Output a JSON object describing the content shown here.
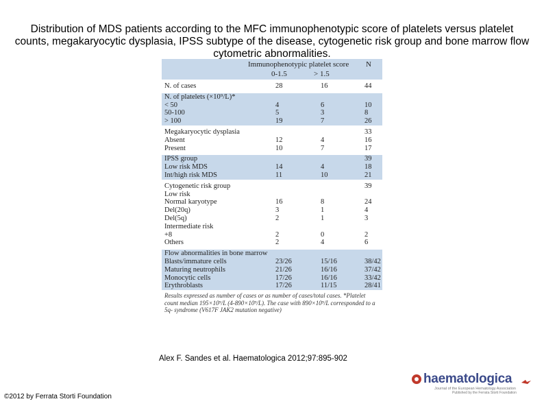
{
  "title": "Distribution of MDS patients according to the MFC immunophenotypic score of platelets versus platelet counts, megakaryocytic dysplasia, IPSS subtype of the disease, cytogenetic risk group and bone marrow flow cytometric abnormalities.",
  "table": {
    "header_group": "Immunophenotypic platelet score",
    "header_col1": "0-1.5",
    "header_col2": "> 1.5",
    "header_n": "N",
    "rows": [
      {
        "label": "N. of cases",
        "c1": "28",
        "c2": "16",
        "c3": "44",
        "band": false
      },
      {
        "label": "N. of platelets  (×10⁹/L)*",
        "c1": "",
        "c2": "",
        "c3": "",
        "band": true
      },
      {
        "label": "   < 50",
        "c1": "4",
        "c2": "6",
        "c3": "10",
        "band": true
      },
      {
        "label": "   50-100",
        "c1": "5",
        "c2": "3",
        "c3": "8",
        "band": true
      },
      {
        "label": "   > 100",
        "c1": "19",
        "c2": "7",
        "c3": "26",
        "band": true
      },
      {
        "label": "Megakaryocytic dysplasia",
        "c1": "",
        "c2": "",
        "c3": "33",
        "band": false
      },
      {
        "label": "   Absent",
        "c1": "12",
        "c2": "4",
        "c3": "16",
        "band": false
      },
      {
        "label": "   Present",
        "c1": "10",
        "c2": "7",
        "c3": "17",
        "band": false
      },
      {
        "label": "IPSS group",
        "c1": "",
        "c2": "",
        "c3": "39",
        "band": true
      },
      {
        "label": "   Low risk MDS",
        "c1": "14",
        "c2": "4",
        "c3": "18",
        "band": true
      },
      {
        "label": "   Int/high risk MDS",
        "c1": "11",
        "c2": "10",
        "c3": "21",
        "band": true
      },
      {
        "label": "Cytogenetic risk group",
        "c1": "",
        "c2": "",
        "c3": "39",
        "band": false
      },
      {
        "label": "  Low risk",
        "c1": "",
        "c2": "",
        "c3": "",
        "band": false
      },
      {
        "label": "   Normal karyotype",
        "c1": "16",
        "c2": "8",
        "c3": "24",
        "band": false
      },
      {
        "label": "   Del(20q)",
        "c1": "3",
        "c2": "1",
        "c3": "4",
        "band": false
      },
      {
        "label": "   Del(5q)",
        "c1": "2",
        "c2": "1",
        "c3": "3",
        "band": false
      },
      {
        "label": "  Intermediate risk",
        "c1": "",
        "c2": "",
        "c3": "",
        "band": false
      },
      {
        "label": "   +8",
        "c1": "2",
        "c2": "0",
        "c3": "2",
        "band": false
      },
      {
        "label": "   Others",
        "c1": "2",
        "c2": "4",
        "c3": "6",
        "band": false
      },
      {
        "label": "Flow abnormalities in bone marrow",
        "c1": "",
        "c2": "",
        "c3": "",
        "band": true
      },
      {
        "label": "Blasts/immature cells",
        "c1": "23/26",
        "c2": "15/16",
        "c3": "38/42",
        "band": true
      },
      {
        "label": "Maturing neutrophils",
        "c1": "21/26",
        "c2": "16/16",
        "c3": "37/42",
        "band": true
      },
      {
        "label": "Monocytic cells",
        "c1": "17/26",
        "c2": "16/16",
        "c3": "33/42",
        "band": true
      },
      {
        "label": "Erythroblasts",
        "c1": "17/26",
        "c2": "11/15",
        "c3": "28/41",
        "band": true
      }
    ],
    "footnote": "Results expressed as number of cases or as number of cases/total cases. *Platelet count median 195×10⁹/L (4-890×10⁹/L). The case with 890×10⁹/L corresponded to a 5q- syndrome (V617F JAK2 mutation negative)"
  },
  "citation": "Alex F. Sandes et al. Haematologica 2012;97:895-902",
  "copyright": "©2012 by Ferrata Storti Foundation",
  "logo": {
    "brand": "haematologica",
    "tagline1": "Journal of the European Hematology Association",
    "tagline2": "Published by the Ferrata Storti Foundation"
  }
}
